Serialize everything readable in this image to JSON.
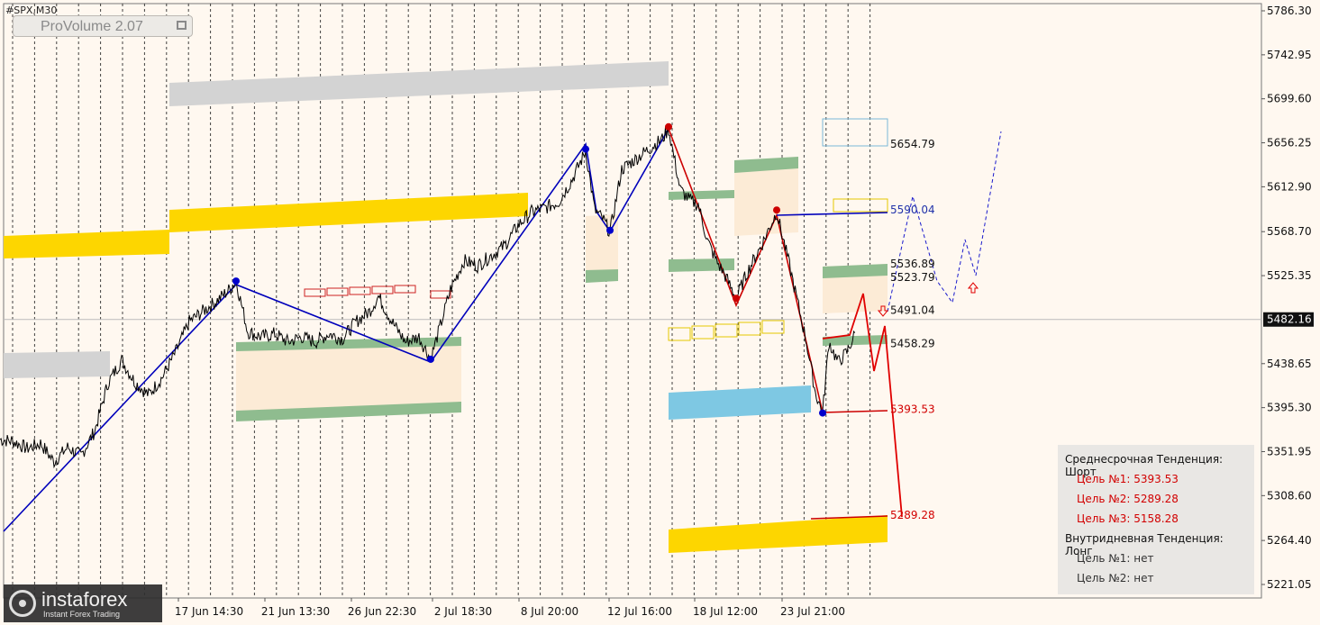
{
  "window": {
    "symbol": "#SPX,M30",
    "indicator_label": "ProVolume 2.07"
  },
  "logo": {
    "name": "instaforex",
    "tagline": "Instant Forex Trading"
  },
  "chart_data": {
    "type": "line",
    "ylim": [
      5200,
      5800
    ],
    "yticks": [
      "5786.30",
      "5742.95",
      "5699.60",
      "5656.25",
      "5612.90",
      "5568.70",
      "5525.35",
      "5482.16",
      "5438.65",
      "5395.30",
      "5351.95",
      "5308.60",
      "5264.40",
      "5221.05"
    ],
    "current_price": "5482.16",
    "xticks": [
      "17 Jun 14:30",
      "21 Jun 13:30",
      "26 Jun 22:30",
      "2 Jul 18:30",
      "8 Jul 20:00",
      "12 Jul 16:00",
      "18 Jul 12:00",
      "23 Jul 21:00"
    ],
    "level_labels": [
      {
        "value": 5654.79,
        "text": "5654.79",
        "color": "#111111"
      },
      {
        "value": 5590.04,
        "text": "5590.04",
        "color": "#2233aa"
      },
      {
        "value": 5536.89,
        "text": "5536.89",
        "color": "#111111"
      },
      {
        "value": 5523.79,
        "text": "5523.79",
        "color": "#111111"
      },
      {
        "value": 5491.04,
        "text": "5491.04",
        "color": "#111111"
      },
      {
        "value": 5458.29,
        "text": "5458.29",
        "color": "#111111"
      },
      {
        "value": 5393.53,
        "text": "5393.53",
        "color": "#d20000"
      },
      {
        "value": 5289.28,
        "text": "5289.28",
        "color": "#d20000"
      }
    ],
    "price_path": [
      [
        0,
        5364
      ],
      [
        15,
        5362
      ],
      [
        30,
        5355
      ],
      [
        45,
        5360
      ],
      [
        60,
        5342
      ],
      [
        75,
        5356
      ],
      [
        90,
        5348
      ],
      [
        105,
        5372
      ],
      [
        120,
        5420
      ],
      [
        135,
        5442
      ],
      [
        150,
        5420
      ],
      [
        165,
        5408
      ],
      [
        180,
        5425
      ],
      [
        195,
        5450
      ],
      [
        210,
        5480
      ],
      [
        225,
        5490
      ],
      [
        240,
        5500
      ],
      [
        255,
        5512
      ],
      [
        262,
        5520
      ],
      [
        275,
        5470
      ],
      [
        290,
        5465
      ],
      [
        305,
        5468
      ],
      [
        320,
        5460
      ],
      [
        335,
        5465
      ],
      [
        350,
        5460
      ],
      [
        365,
        5468
      ],
      [
        380,
        5463
      ],
      [
        395,
        5480
      ],
      [
        410,
        5490
      ],
      [
        420,
        5505
      ],
      [
        435,
        5480
      ],
      [
        450,
        5460
      ],
      [
        465,
        5465
      ],
      [
        478,
        5443
      ],
      [
        490,
        5480
      ],
      [
        500,
        5512
      ],
      [
        515,
        5540
      ],
      [
        530,
        5535
      ],
      [
        545,
        5545
      ],
      [
        560,
        5555
      ],
      [
        575,
        5575
      ],
      [
        590,
        5588
      ],
      [
        605,
        5592
      ],
      [
        620,
        5598
      ],
      [
        635,
        5620
      ],
      [
        650,
        5648
      ],
      [
        660,
        5590
      ],
      [
        670,
        5580
      ],
      [
        677,
        5568
      ],
      [
        690,
        5630
      ],
      [
        705,
        5640
      ],
      [
        720,
        5650
      ],
      [
        735,
        5660
      ],
      [
        742,
        5670
      ],
      [
        755,
        5610
      ],
      [
        765,
        5600
      ],
      [
        775,
        5595
      ],
      [
        785,
        5560
      ],
      [
        795,
        5540
      ],
      [
        805,
        5525
      ],
      [
        817,
        5503
      ],
      [
        830,
        5530
      ],
      [
        845,
        5555
      ],
      [
        862,
        5588
      ],
      [
        875,
        5540
      ],
      [
        885,
        5500
      ],
      [
        895,
        5460
      ],
      [
        905,
        5410
      ],
      [
        913,
        5390
      ],
      [
        920,
        5460
      ],
      [
        930,
        5440
      ],
      [
        940,
        5450
      ],
      [
        950,
        5470
      ]
    ],
    "wave_markers": [
      {
        "x": 262,
        "y": 5520,
        "color": "#0000cc"
      },
      {
        "x": 478,
        "y": 5443,
        "color": "#0000cc"
      },
      {
        "x": 650,
        "y": 5650,
        "color": "#0000cc"
      },
      {
        "x": 677,
        "y": 5570,
        "color": "#0000cc"
      },
      {
        "x": 742,
        "y": 5672,
        "color": "#cc0000"
      },
      {
        "x": 817,
        "y": 5503,
        "color": "#cc0000"
      },
      {
        "x": 862,
        "y": 5590,
        "color": "#cc0000"
      },
      {
        "x": 913,
        "y": 5390,
        "color": "#0000cc"
      }
    ]
  },
  "trend_box": {
    "medium_head": "Среднесрочная Тенденция: Шорт",
    "medium_targets": [
      "Цель №1: 5393.53",
      "Цель №2: 5289.28",
      "Цель №3: 5158.28"
    ],
    "intraday_head": "Внутридневная Тенденция: Лонг",
    "intraday_targets": [
      "Цель №1: нет",
      "Цель №2: нет"
    ]
  }
}
